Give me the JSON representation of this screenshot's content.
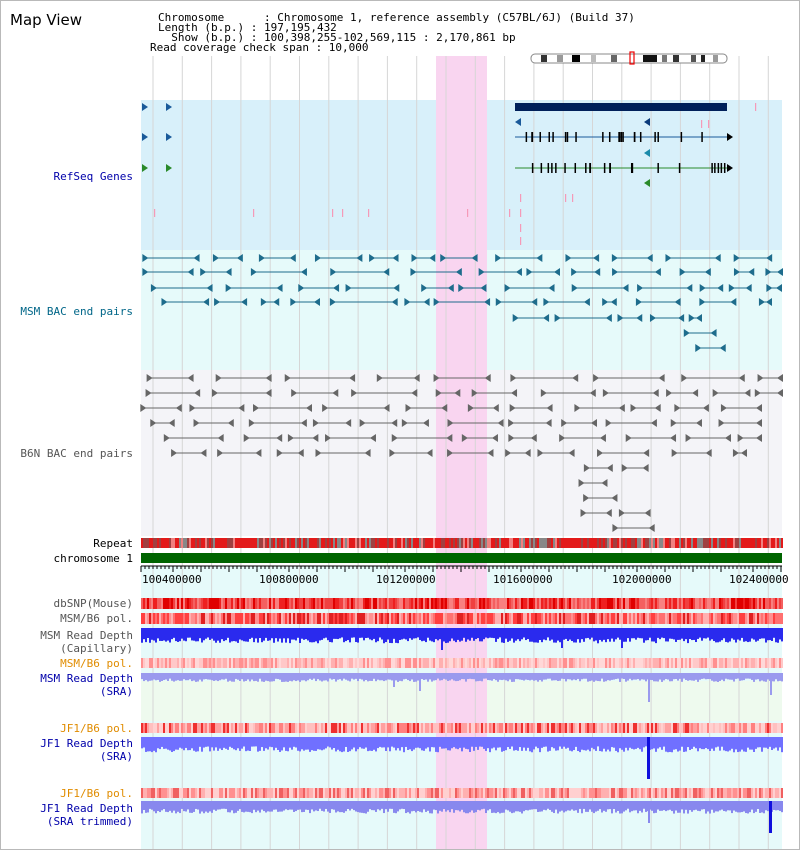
{
  "view_title": "Map View",
  "header": {
    "line1": "Chromosome      : Chromosome 1, reference assembly (C57BL/6J) (Build 37)",
    "line2": "Length (b.p.) : 197,195,432",
    "line3": "  Show (b.p.) : 100,398,255-102,569,115 : 2,170,861 bp",
    "line4": "Read coverage check span : 10,000"
  },
  "tracks": {
    "refseq": "RefSeq Genes",
    "msm_bac": "MSM BAC end pairs",
    "b6n_bac": "B6N BAC end pairs",
    "repeat": "Repeat",
    "chromosome": "chromosome 1",
    "dbsnp": "dbSNP(Mouse)",
    "msm_pol_1": "MSM/B6 pol.",
    "msm_depth_cap_1": "MSM Read Depth",
    "msm_depth_cap_2": "(Capillary)",
    "msm_pol_2": "MSM/B6 pol.",
    "msm_depth_sra_1": "MSM Read Depth",
    "msm_depth_sra_2": "(SRA)",
    "jf1_pol_1": "JF1/B6 pol.",
    "jf1_depth_sra_1": "JF1 Read Depth",
    "jf1_depth_sra_2": "(SRA)",
    "jf1_pol_2": "JF1/B6 pol.",
    "jf1_depth_trim_1": "JF1 Read Depth",
    "jf1_depth_trim_2": "(SRA trimmed)"
  },
  "axis_ticks": [
    "100400000",
    "100800000",
    "101200000",
    "101600000",
    "102000000",
    "102400000"
  ],
  "colors": {
    "refseq_bg": "#d8f0fa",
    "msm_bg": "#e6fafa",
    "b6n_bg": "#f4f4f8",
    "highlight": "#f9d5f0",
    "chrom_green": "#006400",
    "gene_navy": "#00205a",
    "msm_teal": "#1e6c8c",
    "b6n_gray": "#666666",
    "depth_blue": "#2a2aee",
    "sra_blue": "#9a9aee"
  }
}
